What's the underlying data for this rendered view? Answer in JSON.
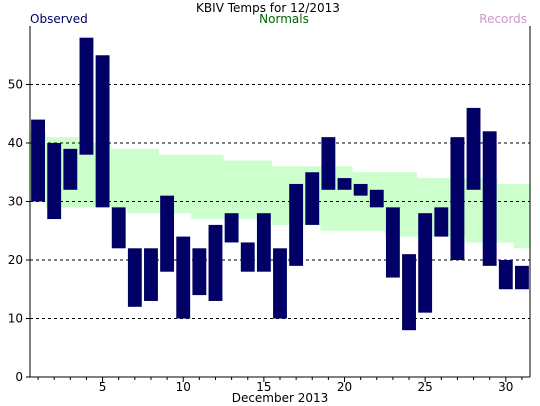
{
  "chart_data": {
    "type": "bar",
    "title": "KBIV Temps for 12/2013",
    "xlabel": "December 2013",
    "ylabel": "",
    "ylim": [
      0,
      60
    ],
    "xlim": [
      0,
      31
    ],
    "grid": true,
    "legend": [
      {
        "label": "Observed",
        "color": "#000066"
      },
      {
        "label": "Normals",
        "color": "#006600"
      },
      {
        "label": "Records",
        "color": "#cc99cc"
      }
    ],
    "y_ticks": [
      0,
      10,
      20,
      30,
      40,
      50
    ],
    "x_ticks": [
      5,
      10,
      15,
      20,
      25,
      30
    ],
    "observed": {
      "name": "Observed",
      "days": [
        1,
        2,
        3,
        4,
        5,
        6,
        7,
        8,
        9,
        10,
        11,
        12,
        13,
        14,
        15,
        16,
        17,
        18,
        19,
        20,
        21,
        22,
        23,
        24,
        25,
        26,
        27,
        28,
        29,
        30,
        31
      ],
      "high": [
        44,
        40,
        39,
        58,
        55,
        29,
        22,
        22,
        31,
        24,
        22,
        26,
        28,
        23,
        28,
        22,
        33,
        35,
        41,
        34,
        33,
        32,
        29,
        21,
        28,
        29,
        41,
        46,
        42,
        20,
        19
      ],
      "low": [
        30,
        27,
        32,
        38,
        29,
        22,
        12,
        13,
        18,
        10,
        14,
        13,
        23,
        18,
        18,
        10,
        19,
        26,
        32,
        32,
        31,
        29,
        17,
        8,
        11,
        24,
        20,
        32,
        19,
        15,
        15
      ]
    },
    "normals": {
      "name": "Normals",
      "high": [
        42,
        41,
        41,
        40,
        40,
        39,
        39,
        39,
        38,
        38,
        38,
        38,
        37,
        37,
        37,
        36,
        36,
        36,
        36,
        36,
        35,
        35,
        35,
        35,
        34,
        34,
        34,
        34,
        34,
        33,
        33
      ],
      "low": [
        30,
        29,
        29,
        29,
        29,
        29,
        28,
        28,
        28,
        28,
        27,
        27,
        27,
        27,
        27,
        26,
        26,
        26,
        25,
        25,
        25,
        25,
        24,
        24,
        24,
        24,
        24,
        23,
        23,
        23,
        22
      ]
    }
  },
  "colors": {
    "observed": "#000066",
    "normals_fill": "#ccffcc",
    "normals_text": "#006600",
    "records_text": "#cc99cc",
    "grid": "#000000"
  }
}
